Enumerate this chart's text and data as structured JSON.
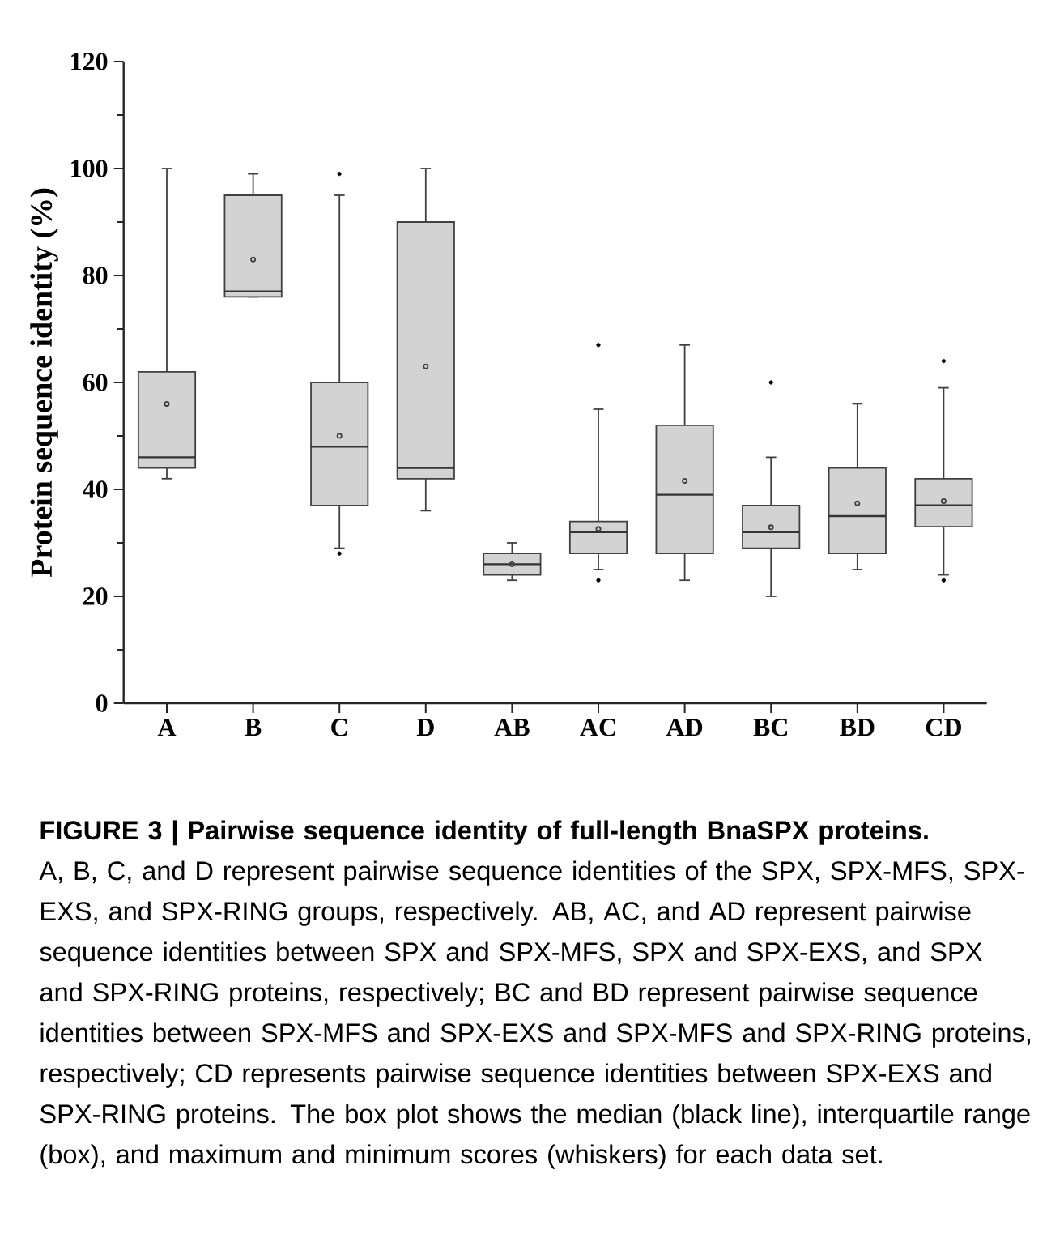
{
  "chart_data": {
    "type": "box",
    "title": "FIGURE 3 | Pairwise sequence identity of full-length BnaSPX proteins.",
    "ylabel": "Protein sequence identity (%)",
    "categories": [
      "A",
      "B",
      "C",
      "D",
      "AB",
      "AC",
      "AD",
      "BC",
      "BD",
      "CD"
    ],
    "color": "#d3d3d3",
    "ylim": [
      0,
      120
    ],
    "yticks": [
      0,
      20,
      40,
      60,
      80,
      100,
      120
    ],
    "boxes": [
      {
        "low": 42,
        "q1": 44,
        "median": 46,
        "q3": 62,
        "high": 100,
        "mean": 56
      },
      {
        "low": 76,
        "q1": 76,
        "median": 77,
        "q3": 95,
        "high": 99,
        "mean": 83
      },
      {
        "low": 29,
        "q1": 37,
        "median": 48,
        "q3": 60,
        "high": 95,
        "mean": 50,
        "outliers": [
          99,
          28
        ]
      },
      {
        "low": 36,
        "q1": 42,
        "median": 44,
        "q3": 90,
        "high": 100,
        "mean": 63
      },
      {
        "low": 23,
        "q1": 24,
        "median": 26,
        "q3": 28,
        "high": 30,
        "mean": 26
      },
      {
        "low": 25,
        "q1": 28,
        "median": 32,
        "q3": 34,
        "high": 55,
        "mean": 32.6,
        "outliers": [
          67,
          23
        ]
      },
      {
        "low": 23,
        "q1": 28,
        "median": 39,
        "q3": 52,
        "high": 67,
        "mean": 41.6
      },
      {
        "low": 20,
        "q1": 29,
        "median": 32,
        "q3": 37,
        "high": 46,
        "mean": 32.9,
        "outliers": [
          60
        ]
      },
      {
        "low": 25,
        "q1": 28,
        "median": 35,
        "q3": 44,
        "high": 56,
        "mean": 37.4
      },
      {
        "low": 24,
        "q1": 33,
        "median": 37,
        "q3": 42,
        "high": 59,
        "mean": 37.8,
        "outliers": [
          64,
          23
        ]
      }
    ],
    "annotations": [
      "A, B, C, and D represent pairwise sequence identities of the SPX, SPX-MFS, SPX-EXS, and SPX-RING groups, respectively. AB, AC, and AD represent pairwise sequence identities between SPX and SPX-MFS, SPX and SPX-EXS, and SPX and SPX-RING proteins, respectively; BC and BD represent pairwise sequence identities between SPX-MFS and SPX-EXS and SPX-MFS and SPX-RING proteins, respectively; CD represents pairwise sequence identities between SPX-EXS and SPX-RING proteins. The box plot shows the median (black line), interquartile range (box), and maximum and minimum scores (whiskers) for each data set."
    ]
  }
}
